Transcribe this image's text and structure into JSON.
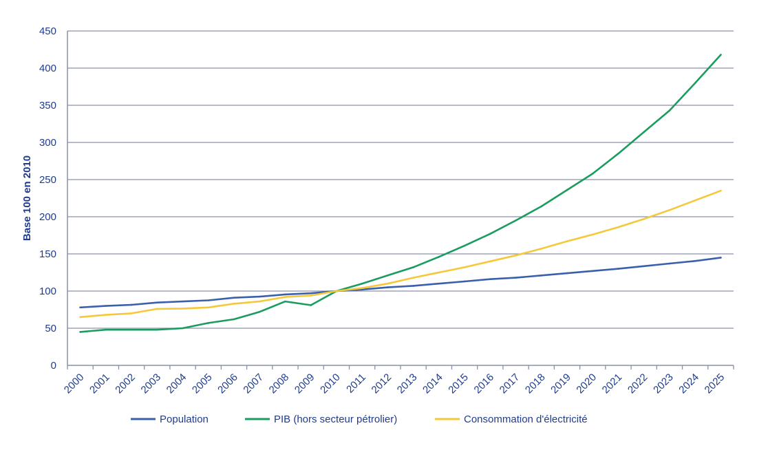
{
  "chart_data": {
    "type": "line",
    "title": "",
    "xlabel": "",
    "ylabel": "Base 100 en 2010",
    "ylim": [
      0,
      450
    ],
    "yticks": [
      0,
      50,
      100,
      150,
      200,
      250,
      300,
      350,
      400,
      450
    ],
    "grid": true,
    "legend_position": "bottom",
    "categories": [
      "2000",
      "2001",
      "2002",
      "2003",
      "2004",
      "2005",
      "2006",
      "2007",
      "2008",
      "2009",
      "2010",
      "2011",
      "2012",
      "2013",
      "2014",
      "2015",
      "2016",
      "2017",
      "2018",
      "2019",
      "2020",
      "2021",
      "2022",
      "2023",
      "2024",
      "2025"
    ],
    "series": [
      {
        "name": "Population",
        "color": "#3a5fad",
        "values": [
          78,
          80,
          81.5,
          84.5,
          86,
          87.5,
          91,
          92.5,
          95.5,
          97,
          100,
          102,
          105,
          107,
          110,
          113,
          116,
          118,
          121,
          124,
          127,
          130,
          133.5,
          137,
          140.5,
          145
        ]
      },
      {
        "name": "PIB (hors secteur pétrolier)",
        "color": "#1a9c5f",
        "values": [
          45,
          48,
          48,
          48,
          50,
          57,
          62,
          72,
          86,
          81,
          100,
          110,
          121,
          132,
          146,
          161,
          177,
          195,
          214,
          236,
          258,
          285,
          314,
          343,
          380,
          418
        ]
      },
      {
        "name": "Consommation d'électricité",
        "color": "#f5c83a",
        "values": [
          65,
          68,
          70,
          76,
          76.5,
          78,
          83,
          86,
          92,
          94,
          100,
          104,
          110,
          118,
          125,
          132,
          140,
          148,
          157,
          167,
          176,
          186,
          197,
          209,
          222,
          235
        ]
      }
    ]
  }
}
